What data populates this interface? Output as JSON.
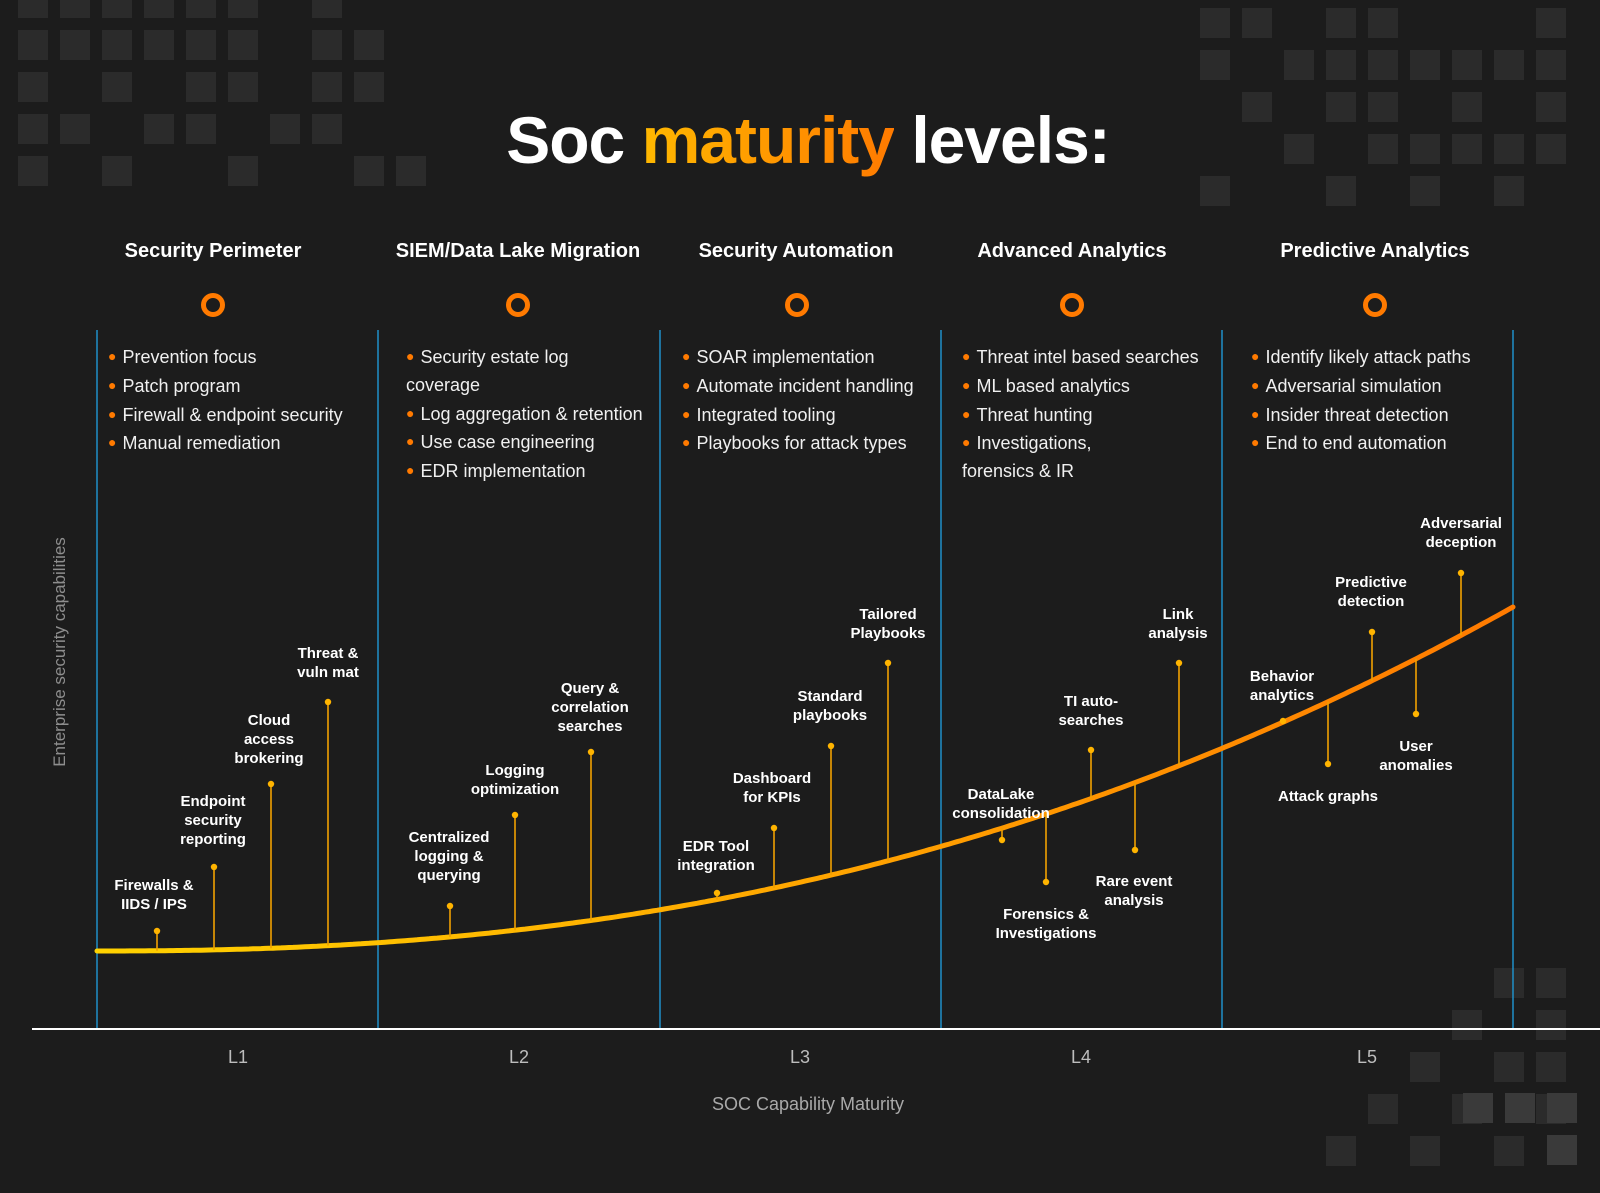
{
  "title": {
    "part1": "Soc",
    "accent": "maturity",
    "part2": "levels:"
  },
  "levels": [
    {
      "title": "Security Perimeter",
      "tick": "L1",
      "bullets": [
        "Prevention focus",
        "Patch program",
        "Firewall & endpoint security",
        "Manual remediation"
      ]
    },
    {
      "title": "SIEM/Data Lake Migration",
      "tick": "L2",
      "bullets": [
        "Security estate log coverage",
        "Log aggregation & retention",
        "Use case engineering",
        "EDR implementation"
      ]
    },
    {
      "title": "Security Automation",
      "tick": "L3",
      "bullets": [
        "SOAR implementation",
        "Automate incident handling",
        "Integrated tooling",
        "Playbooks for attack types"
      ]
    },
    {
      "title": "Advanced Analytics",
      "tick": "L4",
      "bullets": [
        "Threat intel based searches",
        "ML based analytics",
        "Threat hunting",
        "Investigations, forensics & IR"
      ]
    },
    {
      "title": "Predictive Analytics",
      "tick": "L5",
      "bullets": [
        "Identify likely attack paths",
        "Adversarial simulation",
        "Insider threat detection",
        "End to end automation"
      ]
    }
  ],
  "capabilities": [
    "Firewalls & IIDS / IPS",
    "Endpoint security reporting",
    "Cloud access brokering",
    "Threat & vuln mat",
    "Centralized logging & querying",
    "Logging optimization",
    "Query & correlation searches",
    "EDR Tool integration",
    "Dashboard for KPIs",
    "Standard playbooks",
    "Tailored Playbooks",
    "DataLake consolidation",
    "Forensics & Investigations",
    "TI auto-searches",
    "Rare event analysis",
    "Link analysis",
    "Behavior analytics",
    "Attack graphs",
    "Predictive detection",
    "User anomalies",
    "Adversarial deception"
  ],
  "axes": {
    "x_label": "SOC Capability Maturity",
    "y_label": "Enterprise security capabilities"
  },
  "colors": {
    "accent_orange": "#ff7a00",
    "accent_yellow": "#ffd200",
    "divider_blue": "#1f8fc8",
    "background": "#1c1c1c"
  }
}
